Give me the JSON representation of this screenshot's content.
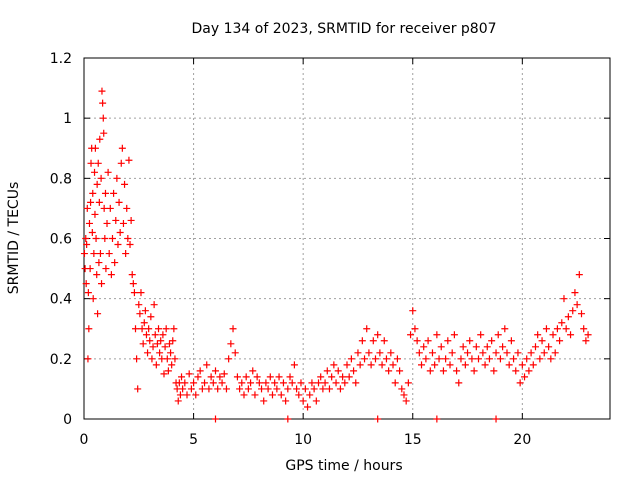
{
  "chart_data": {
    "type": "scatter",
    "title": "Day 134 of 2023, SRMTID for receiver p807",
    "xlabel": "GPS time / hours",
    "ylabel": "SRMTID / TECUs",
    "xlim": [
      0,
      24
    ],
    "ylim": [
      0,
      1.2
    ],
    "x_ticks": [
      0,
      5,
      10,
      15,
      20
    ],
    "x_tick_labels": [
      "0",
      "5",
      "10",
      "15",
      "20"
    ],
    "y_ticks": [
      0,
      0.2,
      0.4,
      0.6,
      0.8,
      1.0,
      1.2
    ],
    "y_tick_labels": [
      "0",
      "0.2",
      "0.4",
      "0.6",
      "0.8",
      "1",
      "1.2"
    ],
    "grid": true,
    "marker": "plus",
    "color": "#ff0000",
    "series": [
      {
        "name": "SRMTID",
        "points": [
          [
            0.02,
            0.55
          ],
          [
            0.05,
            0.5
          ],
          [
            0.08,
            0.6
          ],
          [
            0.1,
            0.45
          ],
          [
            0.12,
            0.58
          ],
          [
            0.15,
            0.7
          ],
          [
            0.18,
            0.2
          ],
          [
            0.2,
            0.42
          ],
          [
            0.22,
            0.3
          ],
          [
            0.25,
            0.65
          ],
          [
            0.28,
            0.5
          ],
          [
            0.3,
            0.72
          ],
          [
            0.32,
            0.85
          ],
          [
            0.35,
            0.9
          ],
          [
            0.38,
            0.62
          ],
          [
            0.4,
            0.75
          ],
          [
            0.42,
            0.4
          ],
          [
            0.45,
            0.55
          ],
          [
            0.48,
            0.82
          ],
          [
            0.5,
            0.68
          ],
          [
            0.52,
            0.9
          ],
          [
            0.55,
            0.6
          ],
          [
            0.58,
            0.48
          ],
          [
            0.6,
            0.78
          ],
          [
            0.62,
            0.35
          ],
          [
            0.65,
            0.85
          ],
          [
            0.68,
            0.52
          ],
          [
            0.7,
            0.72
          ],
          [
            0.72,
            0.93
          ],
          [
            0.75,
            0.55
          ],
          [
            0.78,
            0.8
          ],
          [
            0.8,
            0.45
          ],
          [
            0.82,
            1.09
          ],
          [
            0.85,
            1.05
          ],
          [
            0.88,
            1.0
          ],
          [
            0.9,
            0.95
          ],
          [
            0.92,
            0.7
          ],
          [
            0.95,
            0.6
          ],
          [
            0.98,
            0.75
          ],
          [
            1.0,
            0.5
          ],
          [
            1.05,
            0.65
          ],
          [
            1.1,
            0.82
          ],
          [
            1.15,
            0.55
          ],
          [
            1.2,
            0.7
          ],
          [
            1.25,
            0.48
          ],
          [
            1.3,
            0.6
          ],
          [
            1.35,
            0.75
          ],
          [
            1.4,
            0.52
          ],
          [
            1.45,
            0.66
          ],
          [
            1.5,
            0.8
          ],
          [
            1.55,
            0.58
          ],
          [
            1.6,
            0.72
          ],
          [
            1.65,
            0.62
          ],
          [
            1.7,
            0.85
          ],
          [
            1.75,
            0.9
          ],
          [
            1.8,
            0.65
          ],
          [
            1.85,
            0.78
          ],
          [
            1.9,
            0.55
          ],
          [
            1.95,
            0.7
          ],
          [
            2.0,
            0.6
          ],
          [
            2.05,
            0.86
          ],
          [
            2.1,
            0.58
          ],
          [
            2.15,
            0.66
          ],
          [
            2.2,
            0.48
          ],
          [
            2.25,
            0.45
          ],
          [
            2.3,
            0.42
          ],
          [
            2.35,
            0.3
          ],
          [
            2.4,
            0.2
          ],
          [
            2.45,
            0.1
          ],
          [
            2.5,
            0.38
          ],
          [
            2.55,
            0.35
          ],
          [
            2.6,
            0.42
          ],
          [
            2.65,
            0.3
          ],
          [
            2.7,
            0.25
          ],
          [
            2.75,
            0.32
          ],
          [
            2.8,
            0.36
          ],
          [
            2.85,
            0.28
          ],
          [
            2.9,
            0.22
          ],
          [
            2.95,
            0.3
          ],
          [
            3.0,
            0.26
          ],
          [
            3.05,
            0.34
          ],
          [
            3.1,
            0.2
          ],
          [
            3.15,
            0.24
          ],
          [
            3.2,
            0.38
          ],
          [
            3.25,
            0.28
          ],
          [
            3.3,
            0.18
          ],
          [
            3.35,
            0.25
          ],
          [
            3.4,
            0.3
          ],
          [
            3.45,
            0.22
          ],
          [
            3.5,
            0.26
          ],
          [
            3.55,
            0.2
          ],
          [
            3.6,
            0.28
          ],
          [
            3.65,
            0.15
          ],
          [
            3.7,
            0.24
          ],
          [
            3.75,
            0.3
          ],
          [
            3.8,
            0.2
          ],
          [
            3.85,
            0.16
          ],
          [
            3.9,
            0.25
          ],
          [
            3.95,
            0.22
          ],
          [
            4.0,
            0.18
          ],
          [
            4.05,
            0.26
          ],
          [
            4.1,
            0.3
          ],
          [
            4.15,
            0.2
          ],
          [
            4.2,
            0.12
          ],
          [
            4.25,
            0.1
          ],
          [
            4.3,
            0.06
          ],
          [
            4.35,
            0.12
          ],
          [
            4.4,
            0.08
          ],
          [
            4.45,
            0.14
          ],
          [
            4.5,
            0.1
          ],
          [
            4.6,
            0.12
          ],
          [
            4.7,
            0.08
          ],
          [
            4.8,
            0.15
          ],
          [
            4.9,
            0.1
          ],
          [
            5.0,
            0.12
          ],
          [
            5.1,
            0.08
          ],
          [
            5.2,
            0.14
          ],
          [
            5.3,
            0.16
          ],
          [
            5.4,
            0.1
          ],
          [
            5.5,
            0.12
          ],
          [
            5.6,
            0.18
          ],
          [
            5.7,
            0.1
          ],
          [
            5.8,
            0.14
          ],
          [
            5.9,
            0.12
          ],
          [
            6.0,
            0.16
          ],
          [
            6.1,
            0.1
          ],
          [
            6.2,
            0.14
          ],
          [
            6.3,
            0.12
          ],
          [
            6.4,
            0.15
          ],
          [
            6.5,
            0.1
          ],
          [
            6.6,
            0.2
          ],
          [
            6.7,
            0.25
          ],
          [
            6.8,
            0.3
          ],
          [
            6.9,
            0.22
          ],
          [
            7.0,
            0.14
          ],
          [
            7.1,
            0.1
          ],
          [
            7.2,
            0.12
          ],
          [
            7.3,
            0.08
          ],
          [
            7.4,
            0.14
          ],
          [
            7.5,
            0.1
          ],
          [
            7.6,
            0.12
          ],
          [
            7.7,
            0.16
          ],
          [
            7.8,
            0.08
          ],
          [
            7.9,
            0.14
          ],
          [
            8.0,
            0.12
          ],
          [
            8.1,
            0.1
          ],
          [
            8.2,
            0.06
          ],
          [
            8.3,
            0.12
          ],
          [
            8.4,
            0.1
          ],
          [
            8.5,
            0.14
          ],
          [
            8.6,
            0.08
          ],
          [
            8.7,
            0.12
          ],
          [
            8.8,
            0.1
          ],
          [
            8.9,
            0.14
          ],
          [
            9.0,
            0.08
          ],
          [
            9.1,
            0.12
          ],
          [
            9.2,
            0.06
          ],
          [
            9.3,
            0.1
          ],
          [
            9.4,
            0.14
          ],
          [
            9.5,
            0.12
          ],
          [
            9.6,
            0.18
          ],
          [
            9.7,
            0.1
          ],
          [
            9.8,
            0.08
          ],
          [
            9.9,
            0.12
          ],
          [
            10.0,
            0.06
          ],
          [
            10.1,
            0.1
          ],
          [
            10.2,
            0.04
          ],
          [
            10.3,
            0.08
          ],
          [
            10.4,
            0.12
          ],
          [
            10.5,
            0.1
          ],
          [
            10.6,
            0.06
          ],
          [
            10.7,
            0.12
          ],
          [
            10.8,
            0.14
          ],
          [
            10.9,
            0.1
          ],
          [
            11.0,
            0.12
          ],
          [
            11.1,
            0.16
          ],
          [
            11.2,
            0.1
          ],
          [
            11.3,
            0.14
          ],
          [
            11.4,
            0.18
          ],
          [
            11.5,
            0.12
          ],
          [
            11.6,
            0.16
          ],
          [
            11.7,
            0.1
          ],
          [
            11.8,
            0.14
          ],
          [
            11.9,
            0.12
          ],
          [
            12.0,
            0.18
          ],
          [
            12.1,
            0.14
          ],
          [
            12.2,
            0.2
          ],
          [
            12.3,
            0.16
          ],
          [
            12.4,
            0.12
          ],
          [
            12.5,
            0.22
          ],
          [
            12.6,
            0.18
          ],
          [
            12.7,
            0.26
          ],
          [
            12.8,
            0.2
          ],
          [
            12.9,
            0.3
          ],
          [
            13.0,
            0.22
          ],
          [
            13.1,
            0.18
          ],
          [
            13.2,
            0.26
          ],
          [
            13.3,
            0.2
          ],
          [
            13.4,
            0.28
          ],
          [
            13.5,
            0.22
          ],
          [
            13.6,
            0.18
          ],
          [
            13.7,
            0.26
          ],
          [
            13.8,
            0.2
          ],
          [
            13.9,
            0.16
          ],
          [
            14.0,
            0.22
          ],
          [
            14.1,
            0.18
          ],
          [
            14.2,
            0.12
          ],
          [
            14.3,
            0.2
          ],
          [
            14.4,
            0.16
          ],
          [
            14.5,
            0.1
          ],
          [
            14.6,
            0.08
          ],
          [
            14.7,
            0.06
          ],
          [
            14.8,
            0.12
          ],
          [
            14.9,
            0.28
          ],
          [
            15.0,
            0.36
          ],
          [
            15.1,
            0.3
          ],
          [
            15.2,
            0.26
          ],
          [
            15.3,
            0.22
          ],
          [
            15.4,
            0.18
          ],
          [
            15.5,
            0.24
          ],
          [
            15.6,
            0.2
          ],
          [
            15.7,
            0.26
          ],
          [
            15.8,
            0.16
          ],
          [
            15.9,
            0.22
          ],
          [
            16.0,
            0.18
          ],
          [
            16.1,
            0.28
          ],
          [
            16.2,
            0.2
          ],
          [
            16.3,
            0.24
          ],
          [
            16.4,
            0.16
          ],
          [
            16.5,
            0.2
          ],
          [
            16.6,
            0.26
          ],
          [
            16.7,
            0.18
          ],
          [
            16.8,
            0.22
          ],
          [
            16.9,
            0.28
          ],
          [
            17.0,
            0.16
          ],
          [
            17.1,
            0.12
          ],
          [
            17.2,
            0.2
          ],
          [
            17.3,
            0.24
          ],
          [
            17.4,
            0.18
          ],
          [
            17.5,
            0.22
          ],
          [
            17.6,
            0.26
          ],
          [
            17.7,
            0.2
          ],
          [
            17.8,
            0.16
          ],
          [
            17.9,
            0.24
          ],
          [
            18.0,
            0.2
          ],
          [
            18.1,
            0.28
          ],
          [
            18.2,
            0.22
          ],
          [
            18.3,
            0.18
          ],
          [
            18.4,
            0.24
          ],
          [
            18.5,
            0.2
          ],
          [
            18.6,
            0.26
          ],
          [
            18.7,
            0.16
          ],
          [
            18.8,
            0.22
          ],
          [
            18.9,
            0.28
          ],
          [
            19.0,
            0.2
          ],
          [
            19.1,
            0.24
          ],
          [
            19.2,
            0.3
          ],
          [
            19.3,
            0.22
          ],
          [
            19.4,
            0.18
          ],
          [
            19.5,
            0.26
          ],
          [
            19.6,
            0.2
          ],
          [
            19.7,
            0.16
          ],
          [
            19.8,
            0.22
          ],
          [
            19.9,
            0.12
          ],
          [
            20.0,
            0.18
          ],
          [
            20.1,
            0.14
          ],
          [
            20.2,
            0.2
          ],
          [
            20.3,
            0.16
          ],
          [
            20.4,
            0.22
          ],
          [
            20.5,
            0.18
          ],
          [
            20.6,
            0.24
          ],
          [
            20.7,
            0.28
          ],
          [
            20.8,
            0.2
          ],
          [
            20.9,
            0.26
          ],
          [
            21.0,
            0.22
          ],
          [
            21.1,
            0.3
          ],
          [
            21.2,
            0.24
          ],
          [
            21.3,
            0.2
          ],
          [
            21.4,
            0.28
          ],
          [
            21.5,
            0.22
          ],
          [
            21.6,
            0.3
          ],
          [
            21.7,
            0.26
          ],
          [
            21.8,
            0.32
          ],
          [
            21.9,
            0.4
          ],
          [
            22.0,
            0.3
          ],
          [
            22.1,
            0.34
          ],
          [
            22.2,
            0.28
          ],
          [
            22.3,
            0.36
          ],
          [
            22.4,
            0.42
          ],
          [
            22.5,
            0.38
          ],
          [
            22.6,
            0.48
          ],
          [
            22.7,
            0.35
          ],
          [
            22.8,
            0.3
          ],
          [
            22.9,
            0.26
          ],
          [
            23.0,
            0.28
          ],
          [
            6.0,
            0.0
          ],
          [
            9.3,
            0.0
          ],
          [
            13.4,
            0.0
          ],
          [
            16.1,
            0.0
          ],
          [
            18.8,
            0.0
          ]
        ]
      }
    ]
  }
}
